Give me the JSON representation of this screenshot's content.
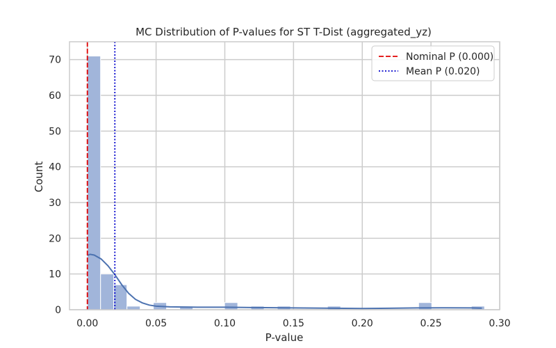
{
  "chart_data": {
    "type": "bar",
    "title": "MC Distribution of P-values for ST T-Dist (aggregated_yz)",
    "xlabel": "P-value",
    "ylabel": "Count",
    "xlim": [
      -0.013,
      0.3
    ],
    "ylim": [
      0,
      75
    ],
    "xticks": [
      0.0,
      0.05,
      0.1,
      0.15,
      0.2,
      0.25,
      0.3
    ],
    "xtick_labels": [
      "0.00",
      "0.05",
      "0.10",
      "0.15",
      "0.20",
      "0.25",
      "0.30"
    ],
    "yticks": [
      0,
      10,
      20,
      30,
      40,
      50,
      60,
      70
    ],
    "ytick_labels": [
      "0",
      "10",
      "20",
      "30",
      "40",
      "50",
      "60",
      "70"
    ],
    "grid": true,
    "bin_width": 0.0096,
    "bins": [
      {
        "x": 0.0,
        "count": 71
      },
      {
        "x": 0.0096,
        "count": 10
      },
      {
        "x": 0.0192,
        "count": 7
      },
      {
        "x": 0.0288,
        "count": 1
      },
      {
        "x": 0.048,
        "count": 2
      },
      {
        "x": 0.0672,
        "count": 1
      },
      {
        "x": 0.0998,
        "count": 2
      },
      {
        "x": 0.119,
        "count": 1
      },
      {
        "x": 0.1382,
        "count": 1
      },
      {
        "x": 0.1747,
        "count": 1
      },
      {
        "x": 0.241,
        "count": 2
      },
      {
        "x": 0.2794,
        "count": 1
      }
    ],
    "kde": {
      "x": [
        0.0,
        0.002,
        0.005,
        0.01,
        0.015,
        0.02,
        0.025,
        0.03,
        0.035,
        0.04,
        0.045,
        0.05,
        0.06,
        0.07,
        0.08,
        0.1,
        0.12,
        0.15,
        0.18,
        0.2,
        0.22,
        0.24,
        0.26,
        0.28,
        0.287
      ],
      "y": [
        15.2,
        15.5,
        15.3,
        14.2,
        12.3,
        9.8,
        7.0,
        4.6,
        2.9,
        1.9,
        1.3,
        1.0,
        0.8,
        0.75,
        0.7,
        0.7,
        0.6,
        0.5,
        0.4,
        0.35,
        0.4,
        0.5,
        0.55,
        0.5,
        0.45
      ]
    },
    "vlines": [
      {
        "label": "Nominal P (0.000)",
        "x": 0.0,
        "color": "#e00000",
        "style": "dashed"
      },
      {
        "label": "Mean P (0.020)",
        "x": 0.02,
        "color": "#0000cc",
        "style": "dotted"
      }
    ],
    "legend_position": "top-right",
    "colors": {
      "bar": "#a1b5da",
      "bar_edge": "#ffffff",
      "kde": "#4c72b0",
      "grid": "#cccccc",
      "spine": "#cccccc"
    }
  }
}
